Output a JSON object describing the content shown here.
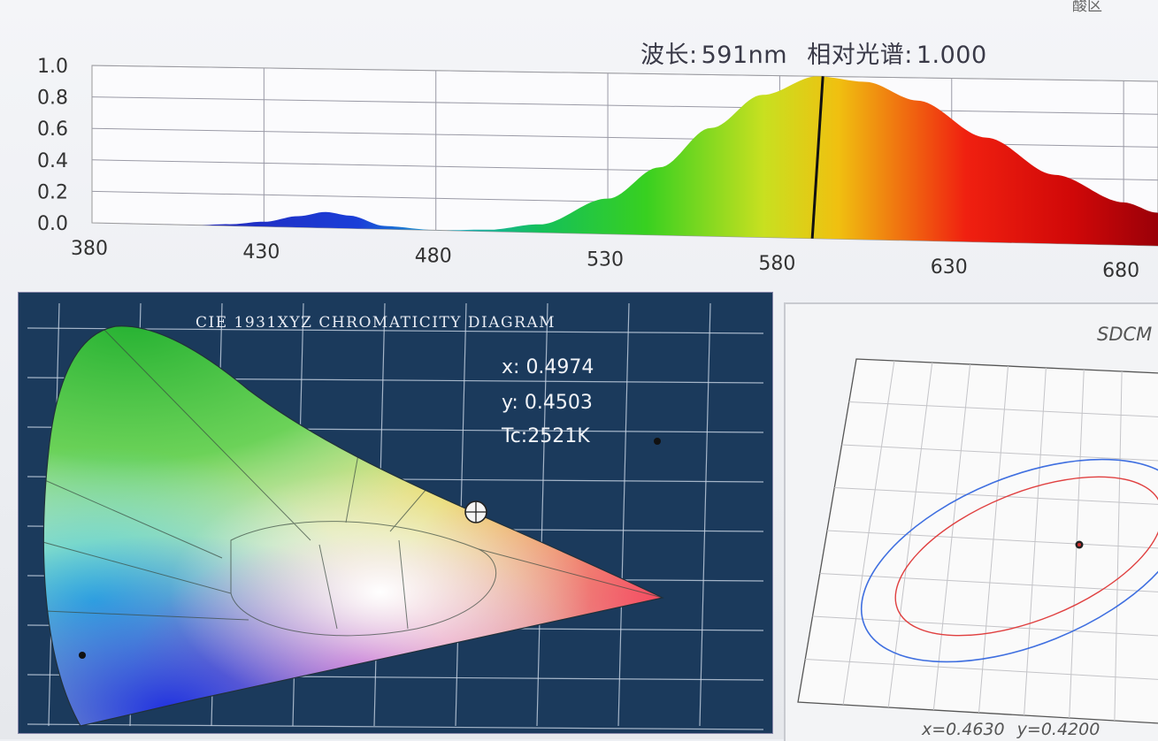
{
  "spectrum": {
    "readout": {
      "wavelength_label": "波长:",
      "wavelength_value": "591nm",
      "relative_label": "相对光谱:",
      "relative_value": "1.000"
    },
    "top_clipped_text": "酸区",
    "chart_data": {
      "type": "area",
      "x": [
        380,
        410,
        420,
        430,
        440,
        448,
        455,
        465,
        480,
        495,
        510,
        530,
        545,
        560,
        575,
        591,
        605,
        620,
        640,
        660,
        680,
        690
      ],
      "y": [
        0.0,
        0.0,
        0.01,
        0.03,
        0.07,
        0.1,
        0.08,
        0.02,
        0.0,
        0.01,
        0.05,
        0.22,
        0.42,
        0.67,
        0.88,
        1.0,
        0.97,
        0.86,
        0.64,
        0.42,
        0.26,
        0.2
      ],
      "xlim": [
        380,
        690
      ],
      "ylim": [
        0.0,
        1.0
      ],
      "xticks": [
        "380",
        "430",
        "480",
        "530",
        "580",
        "630",
        "680"
      ],
      "yticks": [
        "0.0",
        "0.2",
        "0.4",
        "0.6",
        "0.8",
        "1.0"
      ],
      "cursor_x": 591,
      "grid": true
    }
  },
  "cie": {
    "title": "CIE 1931XYZ CHROMATICITY DIAGRAM",
    "x_label": "x:",
    "x_value": "0.4974",
    "y_label": "y:",
    "y_value": "0.4503",
    "tc_label": "Tc:",
    "tc_value": "2521K",
    "background_color": "#1b3a5c"
  },
  "sdcm": {
    "title": "SDCM",
    "x_readout": "x=0.4630",
    "y_readout": "y=0.4200",
    "outer_ellipse_color": "#3f6fe0",
    "inner_ellipse_color": "#e04040"
  }
}
